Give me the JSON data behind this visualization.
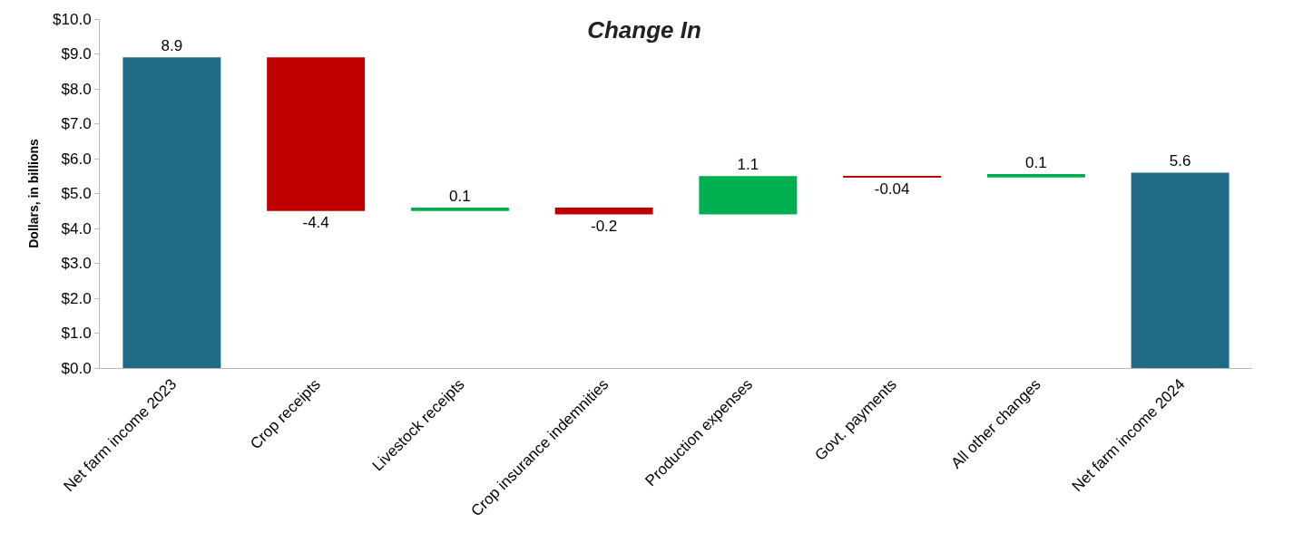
{
  "chart_data": {
    "type": "bar",
    "title": "Change In",
    "ylabel": "Dollars, in billions",
    "categories": [
      "Net farm income 2023",
      "Crop receipts",
      "Livestock receipts",
      "Crop insurance indemnities",
      "Production expenses",
      "Govt. payments",
      "All other changes",
      "Net farm income 2024"
    ],
    "values": [
      8.9,
      -4.4,
      0.1,
      -0.2,
      1.1,
      -0.04,
      0.1,
      5.6
    ],
    "base": [
      0,
      8.9,
      4.5,
      4.6,
      4.4,
      5.5,
      5.46,
      0
    ],
    "colors": [
      "#1f6b85",
      "#c00000",
      "#00b050",
      "#c00000",
      "#00b050",
      "#c00000",
      "#00b050",
      "#1f6b85"
    ],
    "ylim": [
      0,
      10
    ],
    "yticks": [
      {
        "value": 0,
        "label": "$0.0"
      },
      {
        "value": 1,
        "label": "$1.0"
      },
      {
        "value": 2,
        "label": "$2.0"
      },
      {
        "value": 3,
        "label": "$3.0"
      },
      {
        "value": 4,
        "label": "$4.0"
      },
      {
        "value": 5,
        "label": "$5.0"
      },
      {
        "value": 6,
        "label": "$6.0"
      },
      {
        "value": 7,
        "label": "$7.0"
      },
      {
        "value": 8,
        "label": "$8.0"
      },
      {
        "value": 9,
        "label": "$9.0"
      },
      {
        "value": 10,
        "label": "$10.0"
      }
    ],
    "data_labels": true,
    "grid": false
  }
}
